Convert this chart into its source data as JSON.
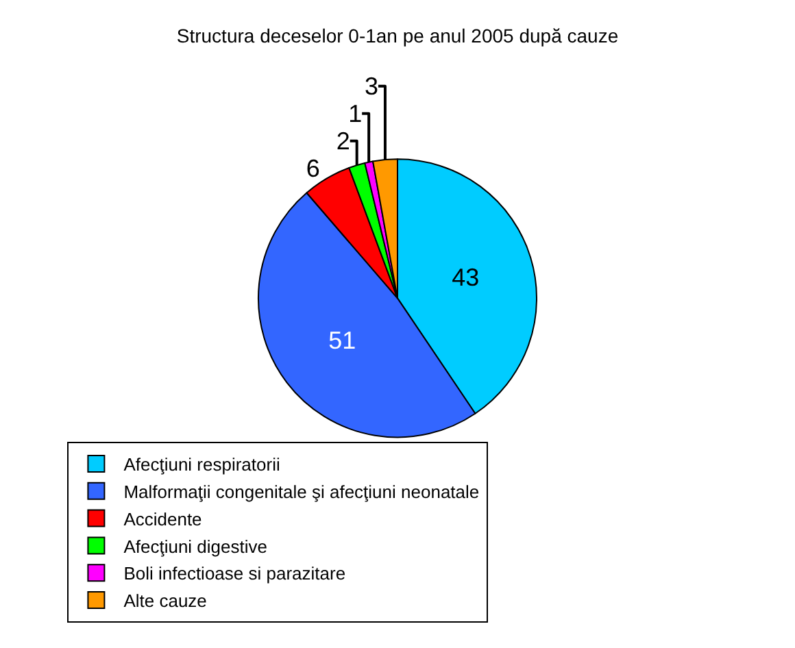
{
  "chart_data": {
    "type": "pie",
    "title": "Structura deceselor 0-1an pe anul 2005 după cauze",
    "categories": [
      "Afecţiuni respiratorii",
      "Malformaţii congenitale şi afecţiuni neonatale",
      "Accidente",
      "Afecţiuni digestive",
      "Boli infectioase si parazitare",
      "Alte cauze"
    ],
    "values": [
      43,
      51,
      6,
      2,
      1,
      3
    ],
    "colors": [
      "#00ccff",
      "#3366ff",
      "#ff0000",
      "#00ff00",
      "#ff00ff",
      "#ff9900"
    ],
    "data_labels": true,
    "legend": "bottom"
  }
}
